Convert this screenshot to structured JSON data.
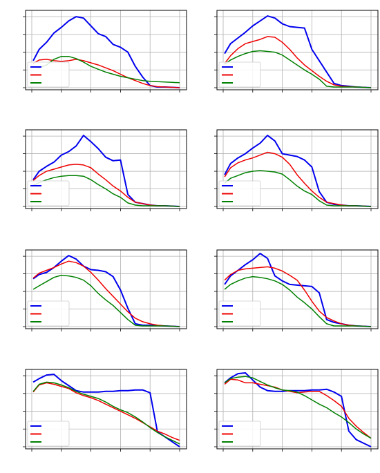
{
  "figure": {
    "colors": {
      "blue": "#0000ee",
      "red": "#ee0000",
      "green": "#008000",
      "grid": "#b0b0b0",
      "axes": "#000000",
      "legend_border": "#cccccc"
    }
  },
  "chart_data": [
    {
      "type": "line",
      "grid": true,
      "legend": "lower-left",
      "xlim": [
        0,
        10
      ],
      "ylim": [
        0,
        1.05
      ],
      "x": [
        0.1,
        0.5,
        1,
        1.5,
        2,
        2.5,
        3,
        3.5,
        4,
        4.5,
        5,
        5.5,
        6,
        6.5,
        7,
        7.5,
        8,
        8.5,
        9,
        9.5,
        10
      ],
      "series": [
        {
          "color": "blue",
          "values": [
            0.38,
            0.54,
            0.64,
            0.77,
            0.85,
            0.94,
            1.0,
            0.98,
            0.87,
            0.76,
            0.72,
            0.61,
            0.57,
            0.5,
            0.3,
            0.15,
            0.03,
            0.01,
            0.01,
            0.005,
            0.0
          ]
        },
        {
          "color": "red",
          "values": [
            0.34,
            0.39,
            0.4,
            0.38,
            0.37,
            0.38,
            0.4,
            0.38,
            0.35,
            0.32,
            0.28,
            0.24,
            0.19,
            0.14,
            0.1,
            0.06,
            0.03,
            0.015,
            0.01,
            0.005,
            0.0
          ]
        },
        {
          "color": "green",
          "values": [
            0.3,
            0.28,
            0.32,
            0.4,
            0.44,
            0.44,
            0.41,
            0.36,
            0.3,
            0.26,
            0.22,
            0.19,
            0.16,
            0.14,
            0.12,
            0.1,
            0.09,
            0.085,
            0.08,
            0.075,
            0.07
          ]
        }
      ]
    },
    {
      "type": "line",
      "grid": true,
      "legend": "lower-left",
      "xlim": [
        0,
        10
      ],
      "ylim": [
        0,
        1.05
      ],
      "x": [
        0.1,
        0.5,
        1,
        1.5,
        2,
        2.5,
        3,
        3.5,
        4,
        4.5,
        5,
        5.5,
        6,
        6.5,
        7,
        7.5,
        8,
        8.5,
        9,
        9.5,
        10
      ],
      "series": [
        {
          "color": "blue",
          "values": [
            0.48,
            0.62,
            0.7,
            0.78,
            0.87,
            0.94,
            1.01,
            0.98,
            0.9,
            0.86,
            0.85,
            0.84,
            0.54,
            0.38,
            0.22,
            0.06,
            0.03,
            0.02,
            0.01,
            0.005,
            0.0
          ]
        },
        {
          "color": "red",
          "values": [
            0.34,
            0.45,
            0.55,
            0.62,
            0.65,
            0.68,
            0.72,
            0.71,
            0.64,
            0.54,
            0.42,
            0.32,
            0.24,
            0.16,
            0.09,
            0.04,
            0.02,
            0.015,
            0.01,
            0.005,
            0.0
          ]
        },
        {
          "color": "green",
          "values": [
            0.33,
            0.39,
            0.44,
            0.48,
            0.51,
            0.52,
            0.51,
            0.5,
            0.46,
            0.39,
            0.32,
            0.25,
            0.19,
            0.12,
            0.02,
            0.01,
            0.01,
            0.01,
            0.01,
            0.005,
            0.0
          ]
        }
      ]
    },
    {
      "type": "line",
      "grid": true,
      "legend": "lower-left",
      "xlim": [
        0,
        10
      ],
      "ylim": [
        0,
        1.05
      ],
      "x": [
        0.1,
        0.5,
        1,
        1.5,
        2,
        2.5,
        3,
        3.5,
        4,
        4.5,
        5,
        5.5,
        6,
        6.5,
        7,
        7.5,
        8,
        8.5,
        9,
        9.5,
        10
      ],
      "series": [
        {
          "color": "blue",
          "values": [
            0.38,
            0.5,
            0.57,
            0.63,
            0.73,
            0.78,
            0.86,
            1.01,
            0.92,
            0.82,
            0.7,
            0.65,
            0.66,
            0.17,
            0.06,
            0.04,
            0.02,
            0.01,
            0.01,
            0.005,
            0.0
          ]
        },
        {
          "color": "red",
          "values": [
            0.37,
            0.44,
            0.5,
            0.53,
            0.56,
            0.59,
            0.6,
            0.59,
            0.55,
            0.46,
            0.38,
            0.29,
            0.22,
            0.13,
            0.06,
            0.04,
            0.02,
            0.01,
            0.01,
            0.005,
            0.0
          ]
        },
        {
          "color": "green",
          "values": [
            0.3,
            0.34,
            0.38,
            0.41,
            0.43,
            0.44,
            0.44,
            0.43,
            0.38,
            0.31,
            0.25,
            0.18,
            0.13,
            0.05,
            0.02,
            0.01,
            0.01,
            0.01,
            0.01,
            0.005,
            0.0
          ]
        }
      ]
    },
    {
      "type": "line",
      "grid": true,
      "legend": "lower-left",
      "xlim": [
        0,
        10
      ],
      "ylim": [
        0,
        1.05
      ],
      "x": [
        0.1,
        0.5,
        1,
        1.5,
        2,
        2.5,
        3,
        3.5,
        4,
        4.5,
        5,
        5.5,
        6,
        6.5,
        7,
        7.5,
        8,
        8.5,
        9,
        9.5,
        10
      ],
      "series": [
        {
          "color": "blue",
          "values": [
            0.45,
            0.61,
            0.69,
            0.75,
            0.83,
            0.9,
            1.01,
            0.93,
            0.75,
            0.73,
            0.71,
            0.66,
            0.56,
            0.21,
            0.06,
            0.03,
            0.02,
            0.01,
            0.01,
            0.005,
            0.0
          ]
        },
        {
          "color": "red",
          "values": [
            0.42,
            0.55,
            0.62,
            0.66,
            0.69,
            0.73,
            0.77,
            0.75,
            0.7,
            0.6,
            0.45,
            0.33,
            0.22,
            0.13,
            0.06,
            0.04,
            0.02,
            0.01,
            0.01,
            0.005,
            0.0
          ]
        },
        {
          "color": "green",
          "values": [
            0.33,
            0.4,
            0.44,
            0.48,
            0.5,
            0.51,
            0.5,
            0.49,
            0.46,
            0.38,
            0.29,
            0.22,
            0.17,
            0.08,
            0.02,
            0.01,
            0.01,
            0.01,
            0.01,
            0.005,
            0.0
          ]
        }
      ]
    },
    {
      "type": "line",
      "grid": true,
      "legend": "lower-left",
      "xlim": [
        0,
        10
      ],
      "ylim": [
        0,
        1.05
      ],
      "x": [
        0.1,
        0.5,
        1,
        1.5,
        2,
        2.5,
        3,
        3.5,
        4,
        4.5,
        5,
        5.5,
        6,
        6.5,
        7,
        7.5,
        8,
        8.5,
        9,
        9.5,
        10
      ],
      "series": [
        {
          "color": "blue",
          "values": [
            0.68,
            0.74,
            0.77,
            0.84,
            0.93,
            1.01,
            0.96,
            0.86,
            0.81,
            0.8,
            0.78,
            0.71,
            0.52,
            0.26,
            0.04,
            0.02,
            0.02,
            0.015,
            0.01,
            0.005,
            0.0
          ]
        },
        {
          "color": "red",
          "values": [
            0.69,
            0.76,
            0.8,
            0.84,
            0.89,
            0.93,
            0.91,
            0.86,
            0.77,
            0.66,
            0.54,
            0.43,
            0.32,
            0.21,
            0.12,
            0.07,
            0.04,
            0.02,
            0.01,
            0.005,
            0.0
          ]
        },
        {
          "color": "green",
          "values": [
            0.53,
            0.58,
            0.64,
            0.7,
            0.73,
            0.72,
            0.7,
            0.66,
            0.58,
            0.47,
            0.38,
            0.3,
            0.2,
            0.1,
            0.02,
            0.01,
            0.01,
            0.01,
            0.01,
            0.005,
            0.0
          ]
        }
      ]
    },
    {
      "type": "line",
      "grid": true,
      "legend": "lower-left",
      "xlim": [
        0,
        10
      ],
      "ylim": [
        0,
        1.05
      ],
      "x": [
        0.1,
        0.5,
        1,
        1.5,
        2,
        2.5,
        3,
        3.5,
        4,
        4.5,
        5,
        5.5,
        6,
        6.5,
        7,
        7.5,
        8,
        8.5,
        9,
        9.5,
        10
      ],
      "series": [
        {
          "color": "blue",
          "values": [
            0.6,
            0.72,
            0.8,
            0.88,
            0.95,
            1.04,
            0.97,
            0.72,
            0.65,
            0.6,
            0.59,
            0.58,
            0.57,
            0.48,
            0.1,
            0.06,
            0.04,
            0.02,
            0.01,
            0.005,
            0.0
          ]
        },
        {
          "color": "red",
          "values": [
            0.66,
            0.74,
            0.8,
            0.82,
            0.83,
            0.84,
            0.85,
            0.83,
            0.79,
            0.73,
            0.66,
            0.52,
            0.36,
            0.22,
            0.13,
            0.08,
            0.04,
            0.02,
            0.01,
            0.005,
            0.0
          ]
        },
        {
          "color": "green",
          "values": [
            0.53,
            0.6,
            0.65,
            0.69,
            0.71,
            0.7,
            0.68,
            0.65,
            0.6,
            0.52,
            0.42,
            0.34,
            0.25,
            0.14,
            0.04,
            0.01,
            0.01,
            0.01,
            0.01,
            0.005,
            0.0
          ]
        }
      ]
    },
    {
      "type": "line",
      "grid": true,
      "legend": "lower-left",
      "xlim": [
        0,
        10
      ],
      "ylim": [
        0,
        1.05
      ],
      "x": [
        0.1,
        0.5,
        1,
        1.5,
        2,
        2.5,
        3,
        3.5,
        4,
        4.5,
        5,
        5.5,
        6,
        6.5,
        7,
        7.5,
        8,
        8.5,
        9,
        9.5,
        10
      ],
      "series": [
        {
          "color": "blue",
          "values": [
            0.91,
            0.96,
            1.01,
            1.02,
            0.93,
            0.86,
            0.79,
            0.77,
            0.77,
            0.77,
            0.78,
            0.78,
            0.79,
            0.79,
            0.8,
            0.8,
            0.76,
            0.21,
            0.14,
            0.07,
            0.0
          ]
        },
        {
          "color": "red",
          "values": [
            0.77,
            0.87,
            0.9,
            0.88,
            0.85,
            0.82,
            0.76,
            0.72,
            0.69,
            0.65,
            0.6,
            0.55,
            0.5,
            0.45,
            0.4,
            0.34,
            0.28,
            0.22,
            0.18,
            0.13,
            0.09
          ]
        },
        {
          "color": "green",
          "values": [
            0.78,
            0.88,
            0.91,
            0.9,
            0.87,
            0.83,
            0.78,
            0.74,
            0.71,
            0.68,
            0.63,
            0.57,
            0.52,
            0.48,
            0.42,
            0.35,
            0.27,
            0.2,
            0.14,
            0.09,
            0.04
          ]
        }
      ]
    },
    {
      "type": "line",
      "grid": true,
      "legend": "lower-left",
      "xlim": [
        0,
        10
      ],
      "ylim": [
        0,
        1.05
      ],
      "x": [
        0.1,
        0.5,
        1,
        1.5,
        2,
        2.5,
        3,
        3.5,
        4,
        4.5,
        5,
        5.5,
        6,
        6.5,
        7,
        7.5,
        8,
        8.5,
        9,
        9.5,
        10
      ],
      "series": [
        {
          "color": "blue",
          "values": [
            0.9,
            0.97,
            1.03,
            1.04,
            0.94,
            0.84,
            0.79,
            0.78,
            0.78,
            0.79,
            0.79,
            0.79,
            0.8,
            0.8,
            0.81,
            0.77,
            0.71,
            0.22,
            0.1,
            0.05,
            0.0
          ]
        },
        {
          "color": "red",
          "values": [
            0.88,
            0.95,
            0.94,
            0.9,
            0.9,
            0.88,
            0.86,
            0.84,
            0.8,
            0.78,
            0.76,
            0.77,
            0.78,
            0.78,
            0.72,
            0.65,
            0.57,
            0.4,
            0.29,
            0.2,
            0.12
          ]
        },
        {
          "color": "green",
          "values": [
            0.9,
            0.96,
            0.98,
            0.99,
            0.97,
            0.92,
            0.87,
            0.83,
            0.8,
            0.79,
            0.77,
            0.72,
            0.66,
            0.6,
            0.55,
            0.48,
            0.42,
            0.34,
            0.25,
            0.18,
            0.12
          ]
        }
      ]
    }
  ]
}
